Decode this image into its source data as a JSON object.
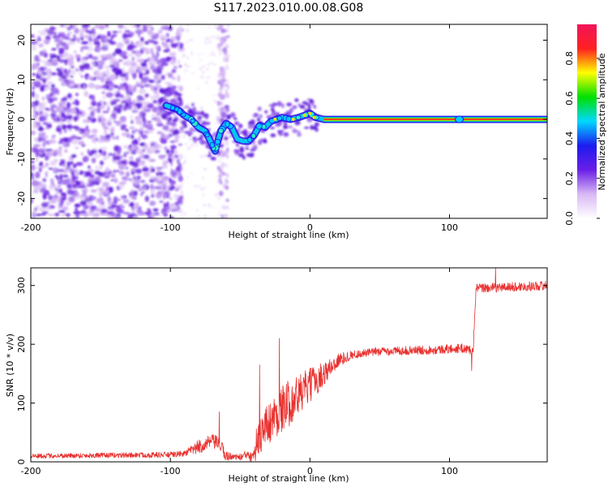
{
  "title": "S117.2023.010.00.08.G08",
  "chart_data": [
    {
      "type": "heatmap",
      "xlabel": "Height of straight line (km)",
      "ylabel": "Frequency (Hz)",
      "xlim": [
        -200,
        170
      ],
      "ylim": [
        -25,
        24
      ],
      "x_ticks": [
        {
          "value": -200,
          "label": "-200"
        },
        {
          "value": -100,
          "label": "-100"
        },
        {
          "value": 0,
          "label": "0"
        },
        {
          "value": 100,
          "label": "100"
        }
      ],
      "y_ticks": [
        {
          "value": 20,
          "label": "20"
        },
        {
          "value": 10,
          "label": "10"
        },
        {
          "value": 0,
          "label": "0"
        },
        {
          "value": -10,
          "label": "-10"
        },
        {
          "value": -20,
          "label": "-20"
        }
      ],
      "colorbar": {
        "label": "Normalized spectral amplitude",
        "range": [
          0,
          0.97
        ],
        "ticks": [
          {
            "value": 0.0,
            "label": "0.0"
          },
          {
            "value": 0.2,
            "label": "0.2"
          },
          {
            "value": 0.4,
            "label": "0.4"
          },
          {
            "value": 0.6,
            "label": "0.6"
          },
          {
            "value": 0.8,
            "label": "0.8"
          }
        ],
        "stops": [
          "#ffffff",
          "#d9b8f5",
          "#6a1ee6",
          "#1c1cf0",
          "#00d8ff",
          "#00e000",
          "#ffff00",
          "#ff2020",
          "#f0145a"
        ]
      },
      "ridge": [
        {
          "x": -103,
          "y": 3.5
        },
        {
          "x": -95,
          "y": 2.5
        },
        {
          "x": -90,
          "y": 1
        },
        {
          "x": -85,
          "y": 0
        },
        {
          "x": -80,
          "y": -2
        },
        {
          "x": -75,
          "y": -3
        },
        {
          "x": -72,
          "y": -5
        },
        {
          "x": -68,
          "y": -8
        },
        {
          "x": -64,
          "y": -3
        },
        {
          "x": -60,
          "y": -1
        },
        {
          "x": -56,
          "y": -2
        },
        {
          "x": -52,
          "y": -5
        },
        {
          "x": -48,
          "y": -5.5
        },
        {
          "x": -44,
          "y": -5.5
        },
        {
          "x": -40,
          "y": -4
        },
        {
          "x": -36,
          "y": -1.5
        },
        {
          "x": -32,
          "y": -2
        },
        {
          "x": -28,
          "y": -0.5
        },
        {
          "x": -24,
          "y": 0
        },
        {
          "x": -20,
          "y": 0.5
        },
        {
          "x": -14,
          "y": 0
        },
        {
          "x": -8,
          "y": 0.5
        },
        {
          "x": -4,
          "y": 1
        },
        {
          "x": 0,
          "y": 1.5
        },
        {
          "x": 4,
          "y": 0.5
        },
        {
          "x": 10,
          "y": 0
        },
        {
          "x": 60,
          "y": 0
        },
        {
          "x": 108,
          "y": 0
        },
        {
          "x": 170,
          "y": 0
        }
      ]
    },
    {
      "type": "line",
      "xlabel": "Height of straight line (km)",
      "ylabel": "SNR (10 * v/v)",
      "xlim": [
        -200,
        170
      ],
      "ylim": [
        0,
        330
      ],
      "x_ticks": [
        {
          "value": -200,
          "label": "-200"
        },
        {
          "value": -100,
          "label": "-100"
        },
        {
          "value": 0,
          "label": "0"
        },
        {
          "value": 100,
          "label": "100"
        }
      ],
      "y_ticks": [
        {
          "value": 0,
          "label": "0"
        },
        {
          "value": 100,
          "label": "100"
        },
        {
          "value": 200,
          "label": "200"
        },
        {
          "value": 300,
          "label": "300"
        }
      ],
      "series": [
        {
          "name": "SNR",
          "color": "#e8302e",
          "trend": [
            {
              "x": -200,
              "y": 10
            },
            {
              "x": -150,
              "y": 11
            },
            {
              "x": -100,
              "y": 12
            },
            {
              "x": -90,
              "y": 14
            },
            {
              "x": -80,
              "y": 25
            },
            {
              "x": -70,
              "y": 35
            },
            {
              "x": -65,
              "y": 30
            },
            {
              "x": -60,
              "y": 10
            },
            {
              "x": -50,
              "y": 8
            },
            {
              "x": -42,
              "y": 15
            },
            {
              "x": -35,
              "y": 50
            },
            {
              "x": -28,
              "y": 70
            },
            {
              "x": -20,
              "y": 90
            },
            {
              "x": -10,
              "y": 110
            },
            {
              "x": 0,
              "y": 130
            },
            {
              "x": 10,
              "y": 150
            },
            {
              "x": 20,
              "y": 172
            },
            {
              "x": 30,
              "y": 182
            },
            {
              "x": 50,
              "y": 188
            },
            {
              "x": 80,
              "y": 190
            },
            {
              "x": 110,
              "y": 193
            },
            {
              "x": 117,
              "y": 190
            },
            {
              "x": 119,
              "y": 295
            },
            {
              "x": 170,
              "y": 300
            }
          ],
          "noise": [
            {
              "x": -200,
              "y": 4
            },
            {
              "x": -90,
              "y": 5
            },
            {
              "x": -80,
              "y": 12
            },
            {
              "x": -62,
              "y": 12
            },
            {
              "x": -55,
              "y": 4
            },
            {
              "x": -45,
              "y": 8
            },
            {
              "x": -35,
              "y": 35
            },
            {
              "x": -15,
              "y": 40
            },
            {
              "x": 0,
              "y": 30
            },
            {
              "x": 15,
              "y": 16
            },
            {
              "x": 30,
              "y": 7
            },
            {
              "x": 117,
              "y": 8
            },
            {
              "x": 119,
              "y": 8
            },
            {
              "x": 170,
              "y": 8
            }
          ],
          "spikes": [
            {
              "x": -65,
              "y": 85
            },
            {
              "x": -22,
              "y": 210
            },
            {
              "x": -36,
              "y": 165
            },
            {
              "x": 116,
              "y": 155
            },
            {
              "x": 133,
              "y": 330
            },
            {
              "x": -39,
              "y": 2
            }
          ]
        }
      ]
    }
  ]
}
